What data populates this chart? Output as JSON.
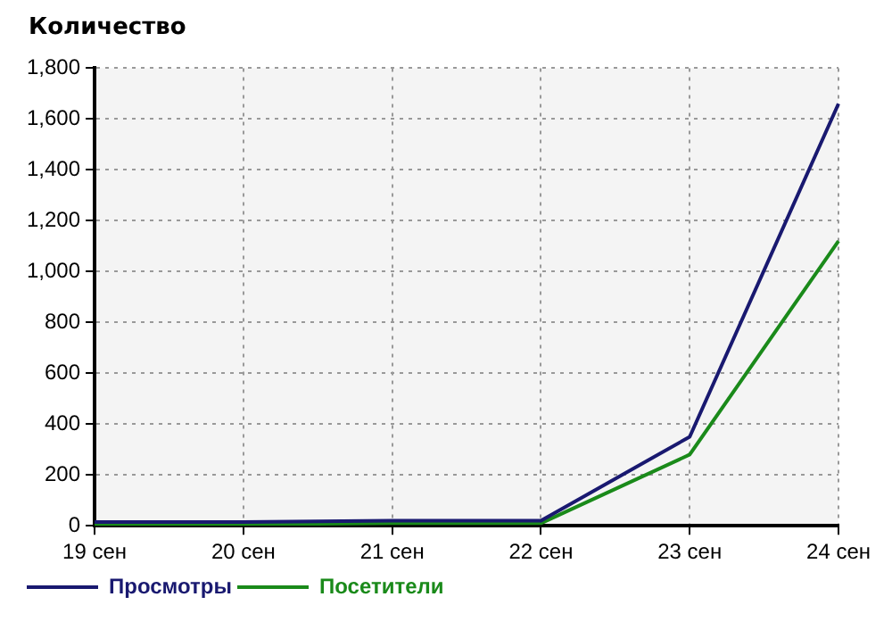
{
  "chart_data": {
    "type": "line",
    "ylabel": "Количество",
    "categories": [
      "19 сен",
      "20 сен",
      "21 сен",
      "22 сен",
      "23 сен",
      "24 сен"
    ],
    "series": [
      {
        "name": "Просмотры",
        "color": "#191970",
        "values": [
          15,
          15,
          20,
          20,
          350,
          1660
        ]
      },
      {
        "name": "Посетители",
        "color": "#1a8a1a",
        "values": [
          5,
          5,
          10,
          10,
          280,
          1120
        ]
      }
    ],
    "ylim": [
      0,
      1800
    ],
    "yticks": [
      0,
      200,
      400,
      600,
      800,
      {
        "value": 1000,
        "label": "1,000"
      },
      {
        "value": 1200,
        "label": "1,200"
      },
      {
        "value": 1400,
        "label": "1,400"
      },
      {
        "value": 1600,
        "label": "1,600"
      },
      {
        "value": 1800,
        "label": "1,800"
      }
    ],
    "grid": true,
    "legend": "bottom left",
    "marker": "none",
    "line_style": "solid"
  }
}
